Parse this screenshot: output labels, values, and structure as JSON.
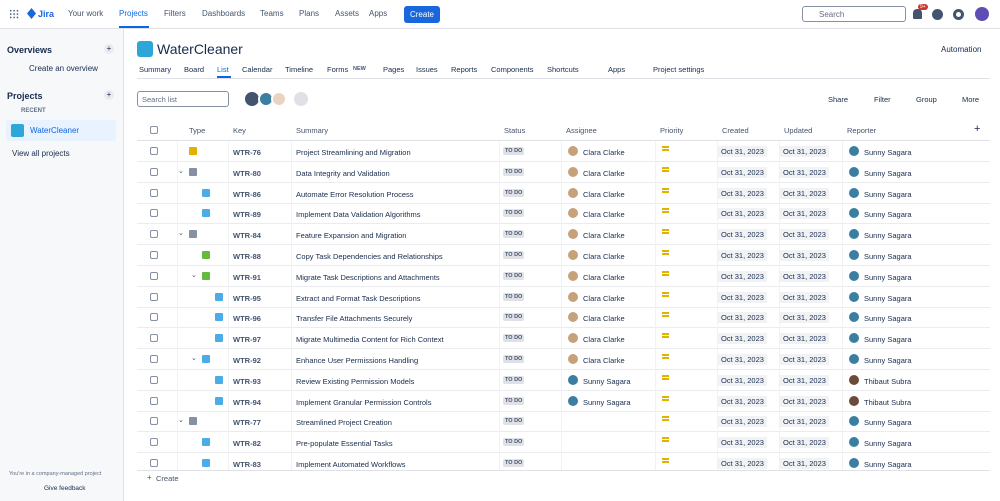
{
  "nav": {
    "logo": "Jira",
    "items": [
      "Your work",
      "Projects",
      "Filters",
      "Dashboards",
      "Teams",
      "Plans",
      "Assets",
      "Apps"
    ],
    "create": "Create",
    "search": "Search",
    "badge": "9+"
  },
  "sidebar": {
    "overviews": "Overviews",
    "create_overview": "Create an overview",
    "projects": "Projects",
    "recent": "RECENT",
    "project": "WaterCleaner",
    "view_all": "View all projects",
    "footer": "You're in a company-managed project",
    "feedback": "Give feedback"
  },
  "header": {
    "title": "WaterCleaner",
    "automation": "Automation",
    "tabs": [
      "Summary",
      "Board",
      "List",
      "Calendar",
      "Timeline",
      "Forms",
      "Pages",
      "Issues",
      "Reports",
      "Components",
      "Shortcuts",
      "Apps",
      "Project settings"
    ],
    "forms_badge": "NEW"
  },
  "toolbar": {
    "search": "Search list",
    "share": "Share",
    "filter": "Filter",
    "group": "Group",
    "more": "More"
  },
  "table": {
    "columns": [
      "Type",
      "Key",
      "Summary",
      "Status",
      "Assignee",
      "Priority",
      "Created",
      "Updated",
      "Reporter"
    ],
    "rows": [
      {
        "key": "WTR-76",
        "summary": "Project Streamlining and Migration",
        "status": "TO DO",
        "assignee": "Clara Clarke",
        "created": "Oct 31, 2023",
        "updated": "Oct 31, 2023",
        "reporter": "Sunny Sagara"
      },
      {
        "key": "WTR-80",
        "summary": "Data Integrity and Validation",
        "status": "TO DO",
        "assignee": "Clara Clarke",
        "created": "Oct 31, 2023",
        "updated": "Oct 31, 2023",
        "reporter": "Sunny Sagara"
      },
      {
        "key": "WTR-86",
        "summary": "Automate Error Resolution Process",
        "status": "TO DO",
        "assignee": "Clara Clarke",
        "created": "Oct 31, 2023",
        "updated": "Oct 31, 2023",
        "reporter": "Sunny Sagara"
      },
      {
        "key": "WTR-89",
        "summary": "Implement Data Validation Algorithms",
        "status": "TO DO",
        "assignee": "Clara Clarke",
        "created": "Oct 31, 2023",
        "updated": "Oct 31, 2023",
        "reporter": "Sunny Sagara"
      },
      {
        "key": "WTR-84",
        "summary": "Feature Expansion and Migration",
        "status": "TO DO",
        "assignee": "Clara Clarke",
        "created": "Oct 31, 2023",
        "updated": "Oct 31, 2023",
        "reporter": "Sunny Sagara"
      },
      {
        "key": "WTR-88",
        "summary": "Copy Task Dependencies and Relationships",
        "status": "TO DO",
        "assignee": "Clara Clarke",
        "created": "Oct 31, 2023",
        "updated": "Oct 31, 2023",
        "reporter": "Sunny Sagara"
      },
      {
        "key": "WTR-91",
        "summary": "Migrate Task Descriptions and Attachments",
        "status": "TO DO",
        "assignee": "Clara Clarke",
        "created": "Oct 31, 2023",
        "updated": "Oct 31, 2023",
        "reporter": "Sunny Sagara"
      },
      {
        "key": "WTR-95",
        "summary": "Extract and Format Task Descriptions",
        "status": "TO DO",
        "assignee": "Clara Clarke",
        "created": "Oct 31, 2023",
        "updated": "Oct 31, 2023",
        "reporter": "Sunny Sagara"
      },
      {
        "key": "WTR-96",
        "summary": "Transfer File Attachments Securely",
        "status": "TO DO",
        "assignee": "Clara Clarke",
        "created": "Oct 31, 2023",
        "updated": "Oct 31, 2023",
        "reporter": "Sunny Sagara"
      },
      {
        "key": "WTR-97",
        "summary": "Migrate Multimedia Content for Rich Context",
        "status": "TO DO",
        "assignee": "Clara Clarke",
        "created": "Oct 31, 2023",
        "updated": "Oct 31, 2023",
        "reporter": "Sunny Sagara"
      },
      {
        "key": "WTR-92",
        "summary": "Enhance User Permissions Handling",
        "status": "TO DO",
        "assignee": "Clara Clarke",
        "created": "Oct 31, 2023",
        "updated": "Oct 31, 2023",
        "reporter": "Sunny Sagara"
      },
      {
        "key": "WTR-93",
        "summary": "Review Existing Permission Models",
        "status": "TO DO",
        "assignee": "Sunny Sagara",
        "created": "Oct 31, 2023",
        "updated": "Oct 31, 2023",
        "reporter": "Thibaut Subra"
      },
      {
        "key": "WTR-94",
        "summary": "Implement Granular Permission Controls",
        "status": "TO DO",
        "assignee": "Sunny Sagara",
        "created": "Oct 31, 2023",
        "updated": "Oct 31, 2023",
        "reporter": "Thibaut Subra"
      },
      {
        "key": "WTR-77",
        "summary": "Streamlined Project Creation",
        "status": "TO DO",
        "assignee": null,
        "created": "Oct 31, 2023",
        "updated": "Oct 31, 2023",
        "reporter": "Sunny Sagara"
      },
      {
        "key": "WTR-82",
        "summary": "Pre-populate Essential Tasks",
        "status": "TO DO",
        "assignee": null,
        "created": "Oct 31, 2023",
        "updated": "Oct 31, 2023",
        "reporter": "Sunny Sagara"
      },
      {
        "key": "WTR-83",
        "summary": "Implement Automated Workflows",
        "status": "TO DO",
        "assignee": null,
        "created": "Oct 31, 2023",
        "updated": "Oct 31, 2023",
        "reporter": "Sunny Sagara"
      }
    ],
    "create": "Create"
  }
}
